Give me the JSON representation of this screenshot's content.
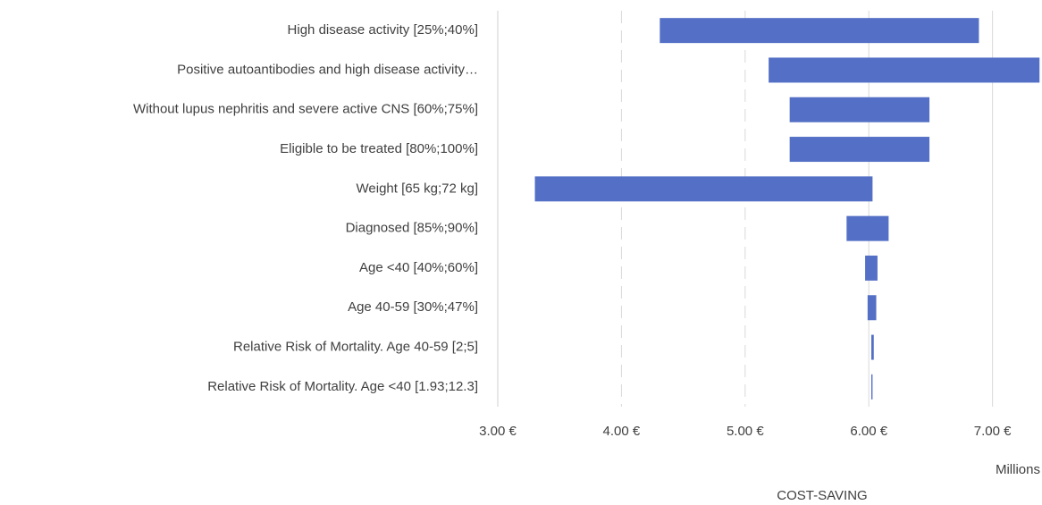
{
  "chart_data": {
    "type": "tornado",
    "categories": [
      "High disease activity [25%;40%]",
      "Positive autoantibodies and high disease activity…",
      "Without lupus nephritis and severe active CNS  [60%;75%]",
      "Eligible to be treated  [80%;100%]",
      "Weight [65 kg;72 kg]",
      "Diagnosed [85%;90%]",
      "Age <40 [40%;60%]",
      "Age 40-59 [30%;47%]",
      "Relative Risk of Mortality. Age 40-59 [2;5]",
      "Relative Risk of Mortality. Age  <40 [1.93;12.3]"
    ],
    "low": [
      4.31,
      5.19,
      5.36,
      5.36,
      3.3,
      5.82,
      5.97,
      5.99,
      6.02,
      6.02
    ],
    "high": [
      6.89,
      7.38,
      6.49,
      6.49,
      6.03,
      6.16,
      6.07,
      6.06,
      6.04,
      6.03
    ],
    "color": "#5470c6",
    "xlim": [
      3,
      7.4
    ],
    "xticks": [
      {
        "value": 3,
        "label": "3.00 €"
      },
      {
        "value": 4,
        "label": "4.00 €"
      },
      {
        "value": 5,
        "label": "5.00 €"
      },
      {
        "value": 6,
        "label": "6.00 €"
      },
      {
        "value": 7,
        "label": "7.00 €"
      }
    ],
    "x_unit_label": "Millions",
    "annotation": "COST-SAVING",
    "grid": true
  }
}
